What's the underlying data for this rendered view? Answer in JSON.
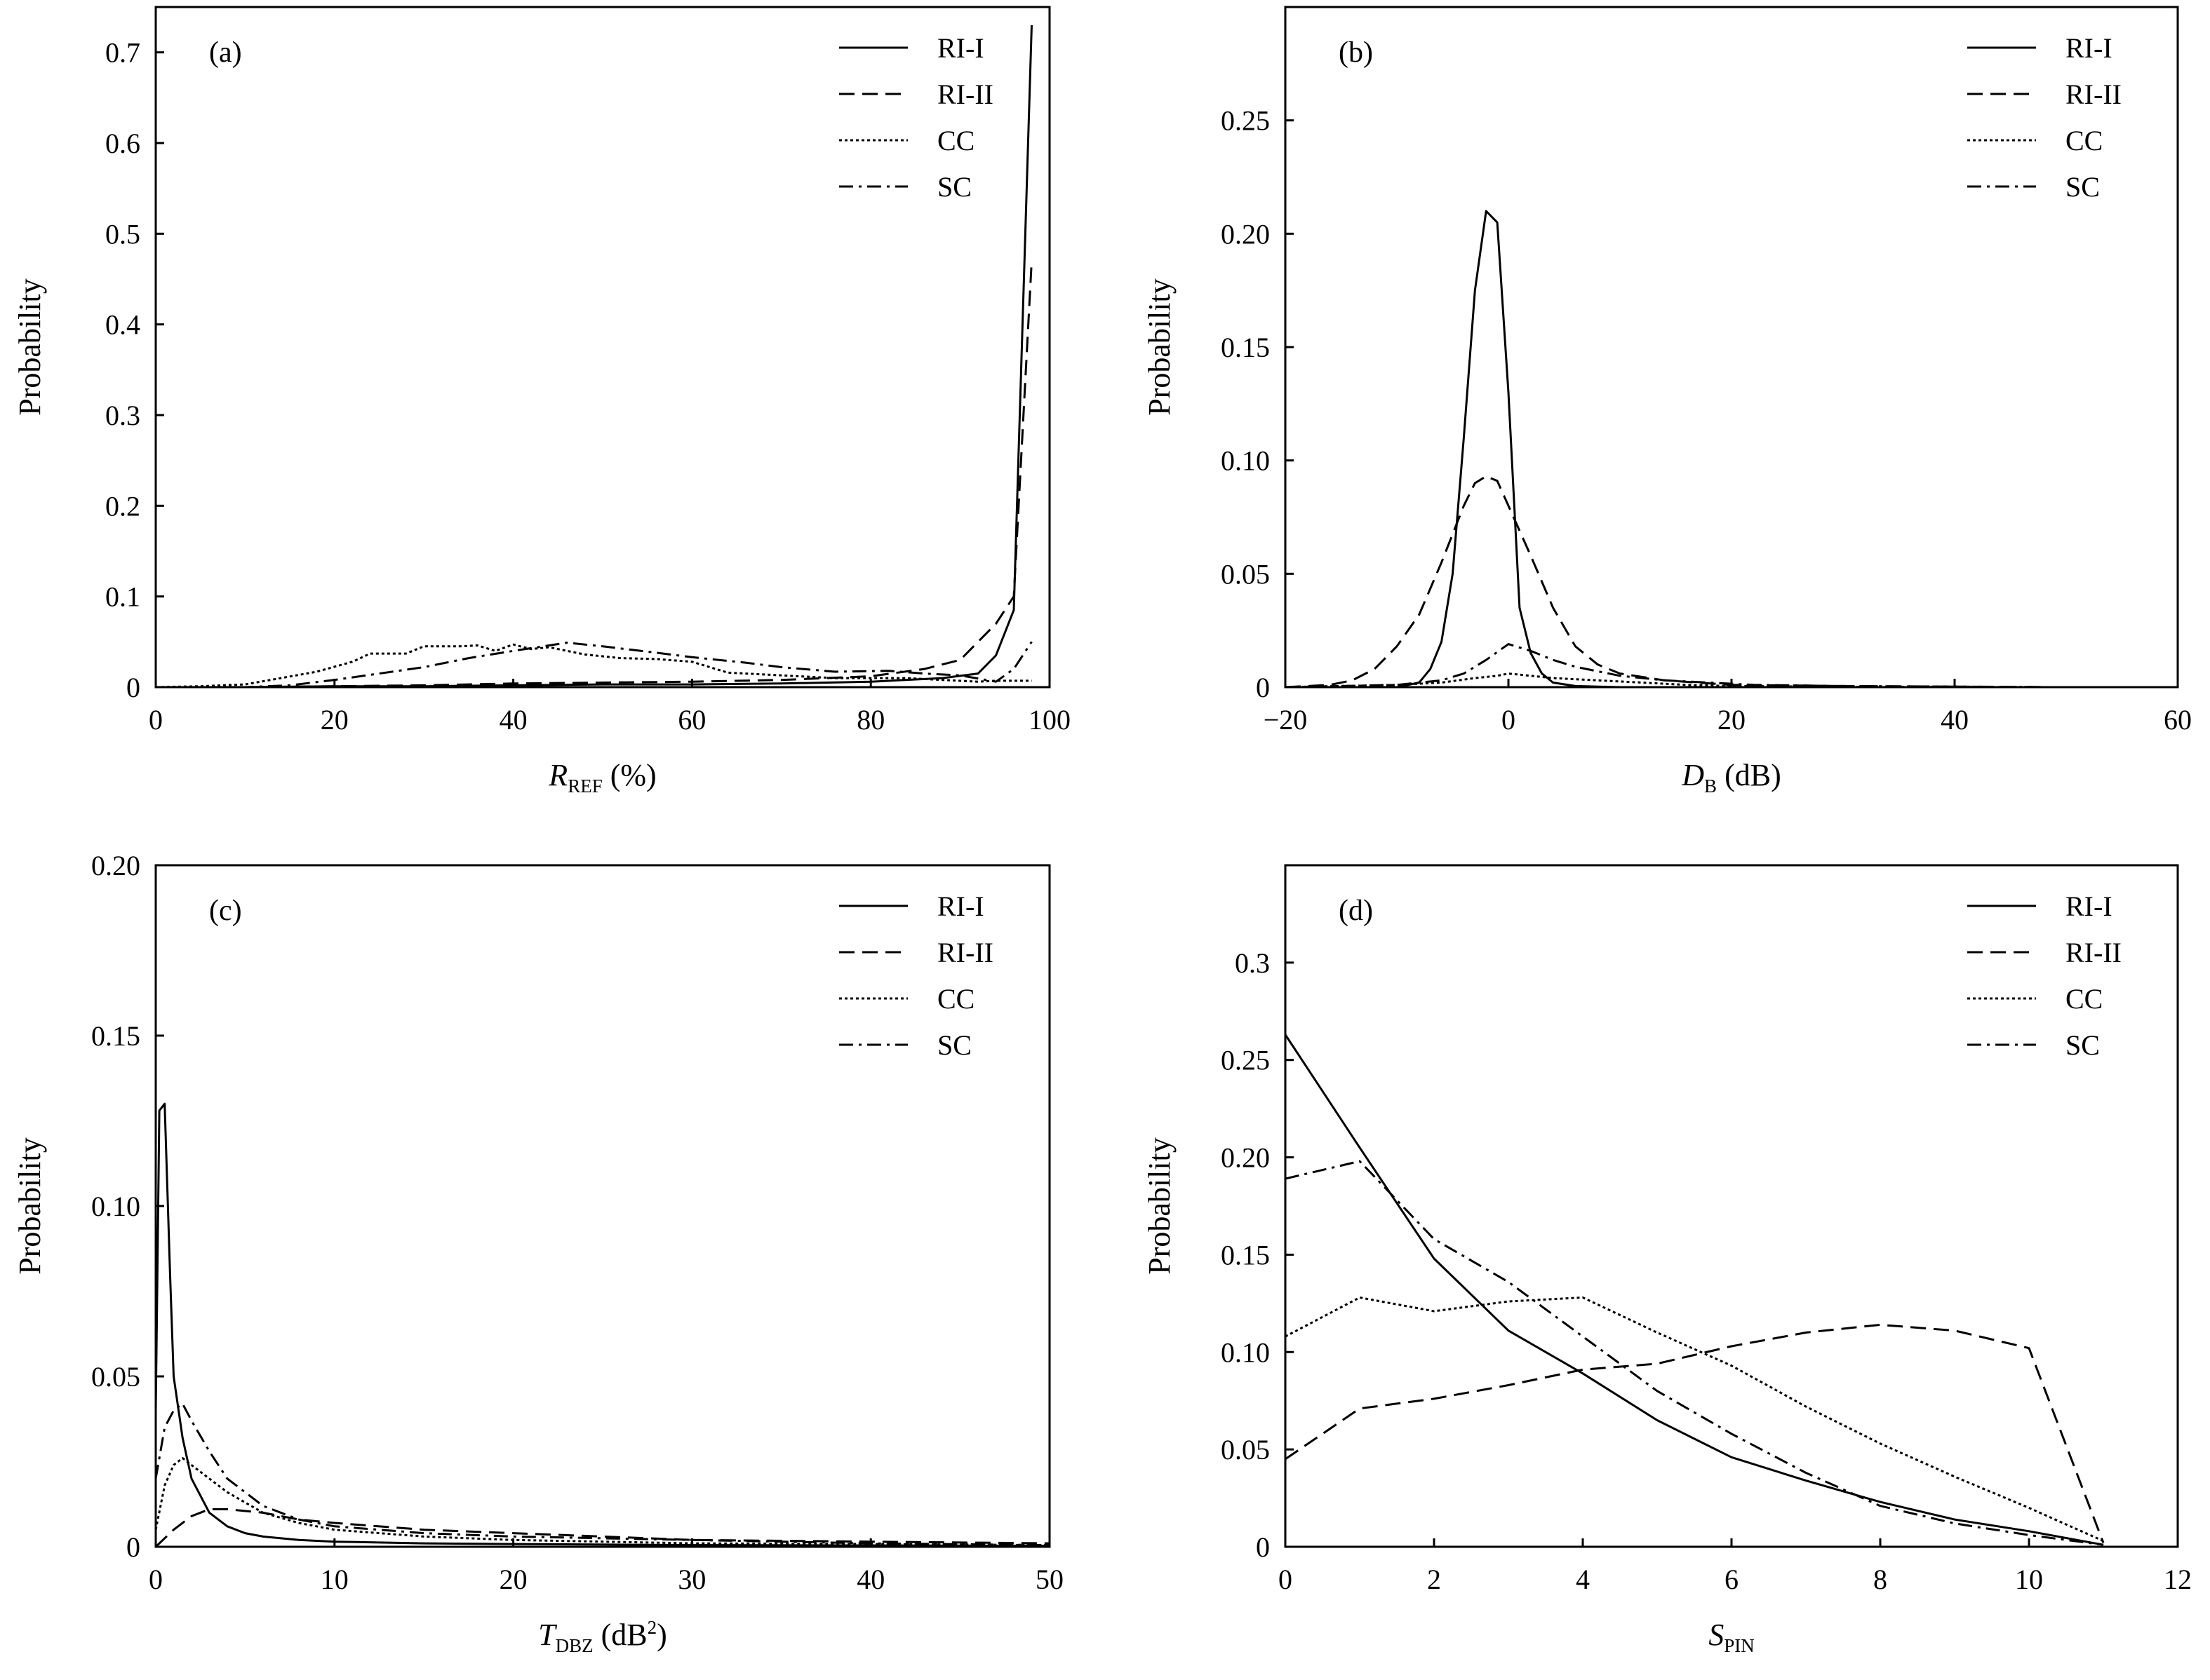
{
  "figure": {
    "legend_styles": [
      {
        "name": "RI-I",
        "dash": "solid"
      },
      {
        "name": "RI-II",
        "dash": "dashed"
      },
      {
        "name": "CC",
        "dash": "dotted"
      },
      {
        "name": "SC",
        "dash": "dashdot"
      }
    ],
    "line_color": "#000000"
  },
  "chart_data": [
    {
      "type": "line",
      "panel_label": "(a)",
      "xlabel": {
        "main": "R",
        "sub": "REF",
        "suffix": " (%)"
      },
      "ylabel": "Probability",
      "xlim": [
        0,
        100
      ],
      "ylim": [
        0,
        0.75
      ],
      "xticks": [
        0,
        20,
        40,
        60,
        80,
        100
      ],
      "xtick_labels": [
        "0",
        "20",
        "40",
        "60",
        "80",
        "100"
      ],
      "yticks": [
        0,
        0.1,
        0.2,
        0.3,
        0.4,
        0.5,
        0.6,
        0.7
      ],
      "ytick_labels": [
        "0",
        "0.1",
        "0.2",
        "0.3",
        "0.4",
        "0.5",
        "0.6",
        "0.7"
      ],
      "legend": [
        "RI-I",
        "RI-II",
        "CC",
        "SC"
      ],
      "legend_position": "top-right",
      "series": [
        {
          "name": "RI-I",
          "x": [
            0,
            10,
            20,
            30,
            40,
            50,
            60,
            70,
            80,
            88,
            92,
            94,
            96,
            98
          ],
          "y": [
            0,
            0,
            0.001,
            0.001,
            0.002,
            0.003,
            0.003,
            0.004,
            0.006,
            0.01,
            0.015,
            0.035,
            0.085,
            0.73
          ]
        },
        {
          "name": "RI-II",
          "x": [
            0,
            10,
            20,
            30,
            40,
            50,
            60,
            70,
            80,
            86,
            90,
            92,
            94,
            96,
            98
          ],
          "y": [
            0,
            0,
            0.001,
            0.002,
            0.004,
            0.005,
            0.006,
            0.008,
            0.012,
            0.02,
            0.03,
            0.05,
            0.07,
            0.1,
            0.47
          ]
        },
        {
          "name": "CC",
          "x": [
            0,
            5,
            10,
            14,
            18,
            22,
            24,
            28,
            30,
            34,
            36,
            38,
            40,
            42,
            44,
            48,
            52,
            56,
            60,
            64,
            68,
            72,
            76,
            80,
            84,
            88,
            92,
            94,
            98
          ],
          "y": [
            0,
            0.001,
            0.003,
            0.01,
            0.017,
            0.028,
            0.037,
            0.037,
            0.045,
            0.045,
            0.046,
            0.04,
            0.047,
            0.042,
            0.044,
            0.036,
            0.032,
            0.031,
            0.028,
            0.016,
            0.014,
            0.012,
            0.01,
            0.01,
            0.01,
            0.008,
            0.006,
            0.007,
            0.007
          ]
        },
        {
          "name": "SC",
          "x": [
            0,
            10,
            15,
            20,
            25,
            30,
            35,
            40,
            46,
            50,
            56,
            60,
            66,
            70,
            76,
            82,
            86,
            90,
            94,
            96,
            98
          ],
          "y": [
            0,
            0,
            0.002,
            0.008,
            0.015,
            0.022,
            0.032,
            0.04,
            0.049,
            0.045,
            0.038,
            0.033,
            0.027,
            0.022,
            0.017,
            0.018,
            0.015,
            0.013,
            0.006,
            0.02,
            0.05
          ]
        }
      ]
    },
    {
      "type": "line",
      "panel_label": "(b)",
      "xlabel": {
        "main": "D",
        "sub": "B",
        "suffix": " (dB)"
      },
      "ylabel": "Probability",
      "xlim": [
        -20,
        60
      ],
      "ylim": [
        0,
        0.3
      ],
      "xticks": [
        -20,
        0,
        20,
        40,
        60
      ],
      "xtick_labels": [
        "−20",
        "0",
        "20",
        "40",
        "60"
      ],
      "yticks": [
        0,
        0.05,
        0.1,
        0.15,
        0.2,
        0.25
      ],
      "ytick_labels": [
        "0",
        "0.05",
        "0.10",
        "0.15",
        "0.20",
        "0.25"
      ],
      "legend": [
        "RI-I",
        "RI-II",
        "CC",
        "SC"
      ],
      "legend_position": "top-right",
      "series": [
        {
          "name": "RI-I",
          "x": [
            -20,
            -10,
            -8,
            -7,
            -6,
            -5,
            -4,
            -3,
            -2,
            -1,
            0,
            1,
            2,
            3,
            4,
            6,
            10,
            20,
            49
          ],
          "y": [
            0,
            0,
            0.002,
            0.008,
            0.02,
            0.05,
            0.11,
            0.175,
            0.21,
            0.205,
            0.13,
            0.035,
            0.015,
            0.006,
            0.002,
            0.0005,
            0,
            0,
            0
          ]
        },
        {
          "name": "RI-II",
          "x": [
            -20,
            -16,
            -14,
            -12,
            -10,
            -8,
            -6,
            -4,
            -3,
            -2,
            -1,
            0,
            2,
            4,
            6,
            8,
            10,
            14,
            20,
            30,
            49
          ],
          "y": [
            0,
            0.001,
            0.003,
            0.008,
            0.018,
            0.032,
            0.055,
            0.08,
            0.09,
            0.093,
            0.091,
            0.08,
            0.058,
            0.035,
            0.018,
            0.01,
            0.006,
            0.003,
            0.001,
            0.0005,
            0
          ]
        },
        {
          "name": "CC",
          "x": [
            -20,
            -10,
            -6,
            -3,
            -1,
            0,
            2,
            4,
            8,
            12,
            16,
            20,
            30,
            49
          ],
          "y": [
            0,
            0.001,
            0.002,
            0.004,
            0.005,
            0.006,
            0.005,
            0.004,
            0.003,
            0.002,
            0.001,
            0.0005,
            0.0002,
            0
          ]
        },
        {
          "name": "SC",
          "x": [
            -20,
            -10,
            -6,
            -4,
            -2,
            0,
            2,
            4,
            6,
            8,
            10,
            14,
            18,
            22,
            30,
            49
          ],
          "y": [
            0,
            0.001,
            0.003,
            0.006,
            0.012,
            0.019,
            0.016,
            0.012,
            0.009,
            0.007,
            0.005,
            0.003,
            0.002,
            0.001,
            0.0005,
            0
          ]
        }
      ]
    },
    {
      "type": "line",
      "panel_label": "(c)",
      "xlabel": {
        "main": "T",
        "sub": "DBZ",
        "suffix": " (dB",
        "sup": "2",
        "close": ")"
      },
      "ylabel": "Probability",
      "xlim": [
        0,
        50
      ],
      "ylim": [
        0,
        0.2
      ],
      "xticks": [
        0,
        10,
        20,
        30,
        40,
        50
      ],
      "xtick_labels": [
        "0",
        "10",
        "20",
        "30",
        "40",
        "50"
      ],
      "yticks": [
        0,
        0.05,
        0.1,
        0.15,
        0.2
      ],
      "ytick_labels": [
        "0",
        "0.05",
        "0.10",
        "0.15",
        "0.20"
      ],
      "legend": [
        "RI-I",
        "RI-II",
        "CC",
        "SC"
      ],
      "legend_position": "top-right",
      "series": [
        {
          "name": "RI-I",
          "x": [
            0,
            0.2,
            0.5,
            0.8,
            1,
            1.5,
            2,
            3,
            4,
            5,
            6,
            8,
            10,
            15,
            20,
            30,
            50
          ],
          "y": [
            0.04,
            0.128,
            0.13,
            0.08,
            0.05,
            0.032,
            0.02,
            0.01,
            0.006,
            0.004,
            0.003,
            0.002,
            0.0015,
            0.001,
            0.0008,
            0.0005,
            0.0003
          ]
        },
        {
          "name": "RI-II",
          "x": [
            0,
            1,
            2,
            3,
            4,
            6,
            8,
            10,
            15,
            20,
            25,
            30,
            40,
            50
          ],
          "y": [
            0,
            0.005,
            0.009,
            0.011,
            0.011,
            0.01,
            0.008,
            0.007,
            0.005,
            0.004,
            0.003,
            0.002,
            0.0015,
            0.001
          ]
        },
        {
          "name": "CC",
          "x": [
            0,
            0.5,
            1,
            1.5,
            2,
            3,
            4,
            6,
            8,
            10,
            15,
            20,
            30,
            40,
            50
          ],
          "y": [
            0.005,
            0.018,
            0.024,
            0.026,
            0.024,
            0.02,
            0.016,
            0.01,
            0.007,
            0.005,
            0.003,
            0.002,
            0.001,
            0.0008,
            0.0005
          ]
        },
        {
          "name": "SC",
          "x": [
            0,
            0.5,
            1,
            1.5,
            2,
            3,
            4,
            6,
            8,
            10,
            15,
            20,
            30,
            40,
            50
          ],
          "y": [
            0.02,
            0.035,
            0.04,
            0.042,
            0.037,
            0.028,
            0.02,
            0.012,
            0.008,
            0.006,
            0.004,
            0.003,
            0.002,
            0.001,
            0.0005
          ]
        }
      ]
    },
    {
      "type": "line",
      "panel_label": "(d)",
      "xlabel": {
        "main": "S",
        "sub": "PIN",
        "suffix": ""
      },
      "ylabel": "Probability",
      "xlim": [
        0,
        12
      ],
      "ylim": [
        0,
        0.35
      ],
      "xticks": [
        0,
        2,
        4,
        6,
        8,
        10,
        12
      ],
      "xtick_labels": [
        "0",
        "2",
        "4",
        "6",
        "8",
        "10",
        "12"
      ],
      "yticks": [
        0,
        0.05,
        0.1,
        0.15,
        0.2,
        0.25,
        0.3
      ],
      "ytick_labels": [
        "0",
        "0.05",
        "0.10",
        "0.15",
        "0.20",
        "0.25",
        "0.3"
      ],
      "legend": [
        "RI-I",
        "RI-II",
        "CC",
        "SC"
      ],
      "legend_position": "top-right",
      "series": [
        {
          "name": "RI-I",
          "x": [
            0,
            1,
            2,
            3,
            4,
            5,
            6,
            7,
            8,
            9,
            10,
            11
          ],
          "y": [
            0.263,
            0.205,
            0.148,
            0.111,
            0.089,
            0.065,
            0.046,
            0.034,
            0.023,
            0.014,
            0.008,
            0.001
          ]
        },
        {
          "name": "RI-II",
          "x": [
            0,
            1,
            2,
            3,
            4,
            5,
            6,
            7,
            8,
            9,
            10,
            11
          ],
          "y": [
            0.045,
            0.071,
            0.076,
            0.083,
            0.091,
            0.094,
            0.103,
            0.11,
            0.114,
            0.111,
            0.102,
            0.002
          ]
        },
        {
          "name": "CC",
          "x": [
            0,
            1,
            2,
            3,
            4,
            5,
            6,
            7,
            8,
            9,
            10,
            11
          ],
          "y": [
            0.108,
            0.128,
            0.121,
            0.126,
            0.128,
            0.11,
            0.093,
            0.072,
            0.053,
            0.036,
            0.02,
            0.003
          ]
        },
        {
          "name": "SC",
          "x": [
            0,
            1,
            2,
            3,
            4,
            5,
            6,
            7,
            8,
            9,
            10,
            11
          ],
          "y": [
            0.189,
            0.198,
            0.158,
            0.136,
            0.108,
            0.08,
            0.058,
            0.038,
            0.021,
            0.012,
            0.006,
            0.001
          ]
        }
      ]
    }
  ]
}
